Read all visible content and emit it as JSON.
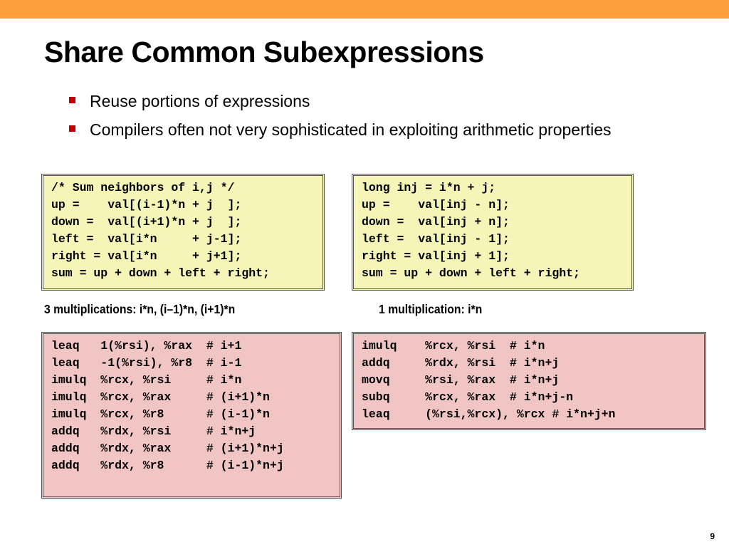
{
  "slide": {
    "title": "Share Common Subexpressions",
    "bullets": [
      "Reuse portions of expressions",
      "Compilers often not very sophisticated in exploiting arithmetic properties"
    ],
    "page_number": "9"
  },
  "code_c_naive": [
    "/* Sum neighbors of i,j */",
    "up =    val[(i-1)*n + j  ];",
    "down =  val[(i+1)*n + j  ];",
    "left =  val[i*n     + j-1];",
    "right = val[i*n     + j+1];",
    "sum = up + down + left + right;"
  ],
  "code_c_shared": [
    "long inj = i*n + j;",
    "up =    val[inj - n];",
    "down =  val[inj + n];",
    "left =  val[inj - 1];",
    "right = val[inj + 1];",
    "sum = up + down + left + right;"
  ],
  "caption_left": "3 multiplications: i*n, (i–1)*n, (i+1)*n",
  "caption_right": "1 multiplication: i*n",
  "asm_naive": [
    "leaq   1(%rsi), %rax  # i+1",
    "leaq   -1(%rsi), %r8  # i-1",
    "imulq  %rcx, %rsi     # i*n",
    "imulq  %rcx, %rax     # (i+1)*n",
    "imulq  %rcx, %r8      # (i-1)*n",
    "addq   %rdx, %rsi     # i*n+j",
    "addq   %rdx, %rax     # (i+1)*n+j",
    "addq   %rdx, %r8      # (i-1)*n+j"
  ],
  "asm_shared": [
    "imulq    %rcx, %rsi  # i*n",
    "addq     %rdx, %rsi  # i*n+j",
    "movq     %rsi, %rax  # i*n+j",
    "subq     %rcx, %rax  # i*n+j-n",
    "leaq     (%rsi,%rcx), %rcx # i*n+j+n"
  ],
  "colors": {
    "top_bar": "#ff9e3d",
    "bullet_marker": "#c00000",
    "c_code_background": "#f5f5b8",
    "asm_code_background": "#f2c5c5"
  }
}
